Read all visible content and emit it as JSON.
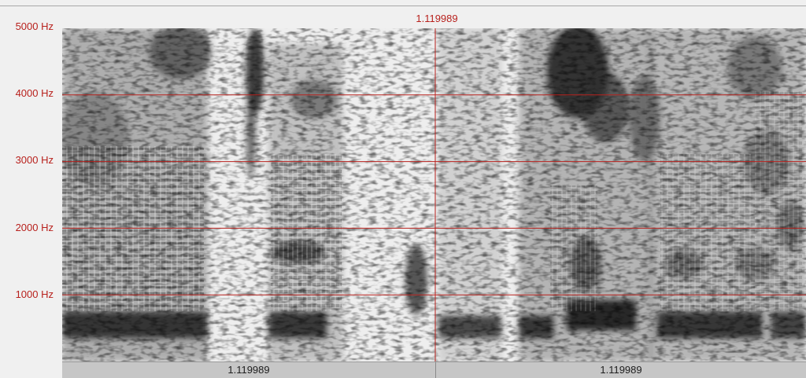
{
  "axis": {
    "labels": [
      "5000 Hz",
      "4000 Hz",
      "3000 Hz",
      "2000 Hz",
      "1000 Hz"
    ],
    "max_hz": 5000
  },
  "cursor": {
    "top_label": "1.119989",
    "line_color": "#b8211d"
  },
  "segments": {
    "left_label": "1.119989",
    "right_label": "1.119989"
  },
  "colors": {
    "accent": "#b8211d",
    "background": "#f0f0f0",
    "segment_bar": "#c6c6c6"
  }
}
